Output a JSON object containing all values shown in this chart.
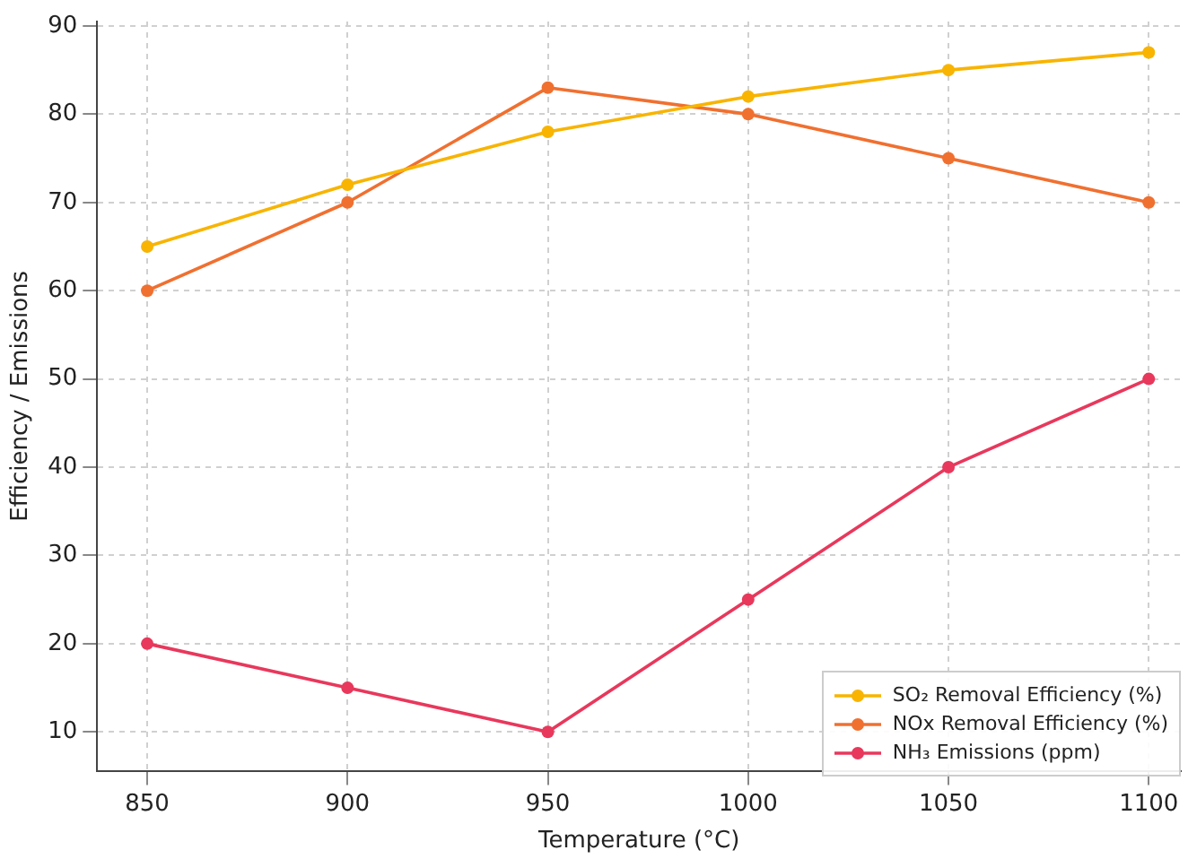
{
  "chart_data": {
    "type": "line",
    "xlabel": "Temperature (°C)",
    "ylabel": "Efficiency / Emissions",
    "x": [
      850,
      900,
      950,
      1000,
      1050,
      1100
    ],
    "series": [
      {
        "name": "SO₂ Removal Efficiency (%)",
        "color": "#f8b400",
        "values": [
          65,
          72,
          78,
          82,
          85,
          87
        ]
      },
      {
        "name": "NOx Removal Efficiency (%)",
        "color": "#f07030",
        "values": [
          60,
          70,
          83,
          80,
          75,
          70
        ]
      },
      {
        "name": "NH₃ Emissions (ppm)",
        "color": "#e8385c",
        "values": [
          20,
          15,
          10,
          25,
          40,
          50
        ]
      }
    ],
    "xlim": [
      837.5,
      1108
    ],
    "xticks": [
      850,
      900,
      950,
      1000,
      1050,
      1100
    ],
    "ylim": [
      5.6,
      90.5
    ],
    "yticks": [
      10,
      20,
      30,
      40,
      50,
      60,
      70,
      80,
      90
    ],
    "grid": true,
    "legend": "bottom right",
    "marker": "circle",
    "line_style": "solid"
  }
}
